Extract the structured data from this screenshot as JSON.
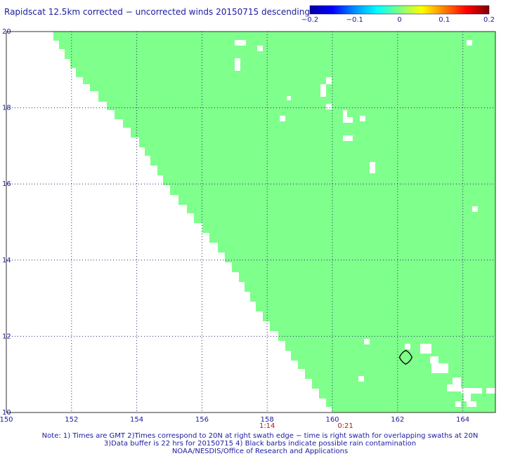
{
  "title": "Rapidscat 12.5km corrected − uncorrected winds 20150715 descending",
  "colorbar": {
    "labels": [
      "−0.2",
      "−0.1",
      "0",
      "0.1",
      "0.2"
    ],
    "stops": [
      "#0000a0",
      "#0000ff",
      "#0090ff",
      "#00ffff",
      "#80ff80",
      "#ffff00",
      "#ff8000",
      "#ff0000",
      "#800000"
    ]
  },
  "map": {
    "lon_range": [
      150,
      165
    ],
    "lat_range": [
      10,
      20
    ],
    "x_ticks": [
      "150",
      "152",
      "154",
      "156",
      "158",
      "160",
      "162",
      "164"
    ],
    "y_ticks": [
      "20",
      "18",
      "16",
      "14",
      "12",
      "10"
    ],
    "swath_color": "#7fff8b",
    "grid": true,
    "times": [
      {
        "label": "1:14",
        "lon": 158
      },
      {
        "label": "0:21",
        "lon": 160.4
      }
    ],
    "rain_contour": {
      "lon": 162.25,
      "lat": 11.45
    }
  },
  "notes": [
    "Note: 1) Times are GMT 2)Times correspond to 20N at right swath edge − time is right swath for overlapping swaths at 20N",
    "3)Data buffer is 22 hrs for 20150715 4) Black barbs indicate possible rain contamination",
    "NOAA/NESDIS/Office of Research and Applications"
  ]
}
